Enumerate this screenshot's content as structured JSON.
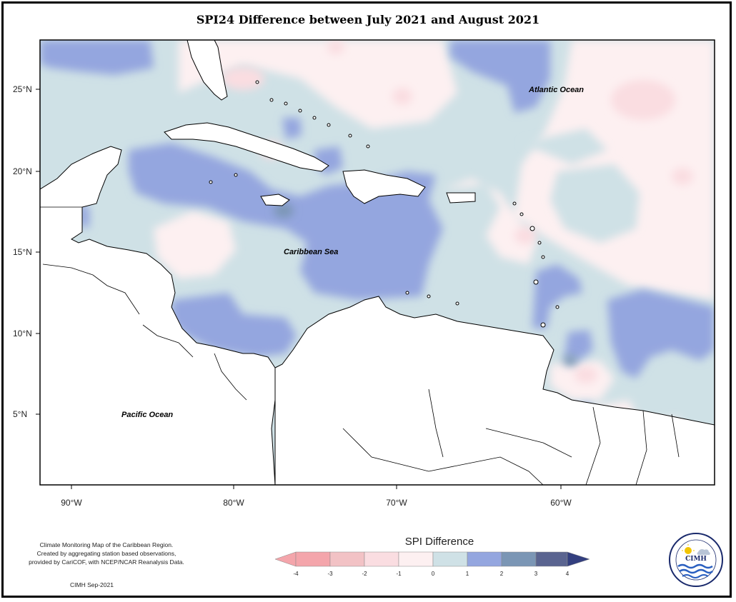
{
  "title": "SPI24 Difference between July 2021 and August 2021",
  "map": {
    "lat_labels": [
      "25°N",
      "20°N",
      "15°N",
      "10°N",
      "5°N"
    ],
    "lon_labels": [
      "90°W",
      "80°W",
      "70°W",
      "60°W"
    ],
    "region_labels": {
      "atlantic": "Atlantic Ocean",
      "caribbean": "Caribbean Sea",
      "pacific": "Pacific Ocean"
    }
  },
  "legend": {
    "title": "SPI Difference",
    "ticks": [
      "-4",
      "-3",
      "-2",
      "-1",
      "0",
      "1",
      "2",
      "3",
      "4"
    ],
    "colors": [
      "#f4a5ab",
      "#f2c2c5",
      "#fadde1",
      "#fdf0f1",
      "#cfe1e6",
      "#94a6df",
      "#7b96b5",
      "#5a6490",
      "#333f7f"
    ],
    "land_color": "#ffffff"
  },
  "credits": {
    "line1": "Climate Monitoring Map of the Caribbean Region.",
    "line2": "Created by aggregating station based observations,",
    "line3": "provided by CariCOF, with NCEP/NCAR Reanalysis Data.",
    "attribution": "CIMH Sep-2021"
  },
  "logo": {
    "text": "CIMH"
  }
}
